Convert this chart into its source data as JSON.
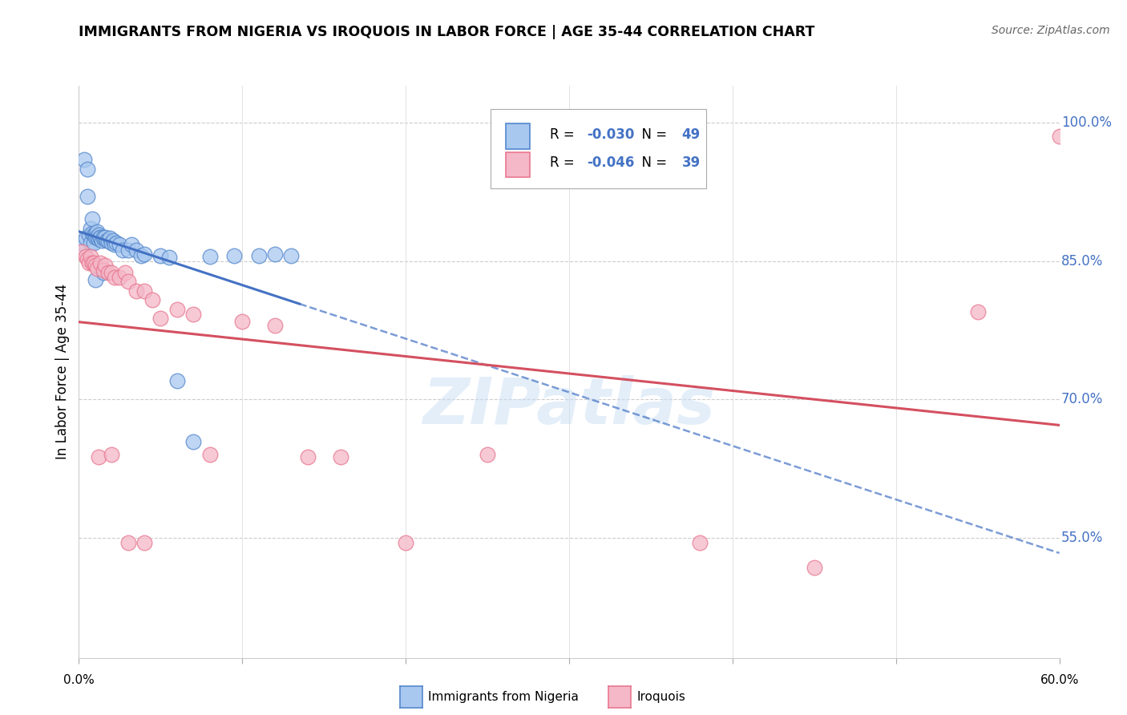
{
  "title": "IMMIGRANTS FROM NIGERIA VS IROQUOIS IN LABOR FORCE | AGE 35-44 CORRELATION CHART",
  "source": "Source: ZipAtlas.com",
  "ylabel": "In Labor Force | Age 35-44",
  "ytick_labels": [
    "100.0%",
    "85.0%",
    "70.0%",
    "55.0%"
  ],
  "ytick_values": [
    1.0,
    0.85,
    0.7,
    0.55
  ],
  "xlim": [
    0.0,
    0.6
  ],
  "ylim": [
    0.42,
    1.04
  ],
  "legend_r_nigeria": "-0.030",
  "legend_n_nigeria": "49",
  "legend_r_iroquois": "-0.046",
  "legend_n_iroquois": "39",
  "color_nigeria": "#a8c8f0",
  "color_iroquois": "#f4b8c8",
  "color_nigeria_edge": "#5588cc",
  "color_iroquois_edge": "#e87890",
  "color_nigeria_line": "#4472C4",
  "color_iroquois_line": "#d45060",
  "watermark": "ZIPatlas",
  "nigeria_x": [
    0.002,
    0.003,
    0.004,
    0.005,
    0.005,
    0.006,
    0.007,
    0.007,
    0.008,
    0.008,
    0.009,
    0.009,
    0.01,
    0.01,
    0.011,
    0.011,
    0.012,
    0.012,
    0.013,
    0.013,
    0.014,
    0.015,
    0.015,
    0.016,
    0.017,
    0.018,
    0.019,
    0.02,
    0.021,
    0.022,
    0.023,
    0.025,
    0.027,
    0.03,
    0.032,
    0.035,
    0.038,
    0.04,
    0.05,
    0.055,
    0.06,
    0.07,
    0.08,
    0.095,
    0.11,
    0.12,
    0.13,
    0.01,
    0.015
  ],
  "nigeria_y": [
    0.87,
    0.96,
    0.875,
    0.95,
    0.92,
    0.878,
    0.885,
    0.87,
    0.88,
    0.896,
    0.878,
    0.87,
    0.88,
    0.876,
    0.882,
    0.876,
    0.878,
    0.874,
    0.875,
    0.876,
    0.872,
    0.875,
    0.876,
    0.876,
    0.872,
    0.872,
    0.875,
    0.87,
    0.872,
    0.868,
    0.87,
    0.868,
    0.862,
    0.862,
    0.868,
    0.862,
    0.856,
    0.858,
    0.856,
    0.854,
    0.72,
    0.654,
    0.855,
    0.856,
    0.856,
    0.858,
    0.856,
    0.83,
    0.838
  ],
  "iroquois_x": [
    0.002,
    0.004,
    0.005,
    0.006,
    0.007,
    0.008,
    0.009,
    0.01,
    0.011,
    0.013,
    0.015,
    0.016,
    0.018,
    0.02,
    0.022,
    0.025,
    0.028,
    0.03,
    0.035,
    0.04,
    0.045,
    0.05,
    0.06,
    0.07,
    0.08,
    0.1,
    0.12,
    0.14,
    0.16,
    0.2,
    0.25,
    0.38,
    0.45,
    0.55,
    0.6,
    0.012,
    0.02,
    0.03,
    0.04
  ],
  "iroquois_y": [
    0.86,
    0.855,
    0.852,
    0.848,
    0.855,
    0.848,
    0.848,
    0.845,
    0.842,
    0.848,
    0.84,
    0.845,
    0.838,
    0.838,
    0.832,
    0.832,
    0.838,
    0.828,
    0.818,
    0.818,
    0.808,
    0.788,
    0.798,
    0.792,
    0.64,
    0.785,
    0.78,
    0.638,
    0.638,
    0.545,
    0.64,
    0.545,
    0.518,
    0.795,
    0.985,
    0.638,
    0.64,
    0.545,
    0.545
  ]
}
